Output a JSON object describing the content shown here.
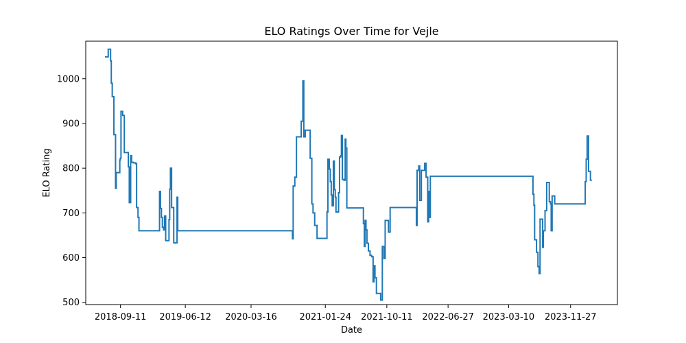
{
  "chart_data": {
    "type": "line",
    "title": "ELO Ratings Over Time for Vejle",
    "xlabel": "Date",
    "ylabel": "ELO Rating",
    "x_is_date": true,
    "xlim": [
      "2018-04-17",
      "2024-06-12"
    ],
    "ylim": [
      495,
      1084
    ],
    "x_ticks": [
      "2018-09-11",
      "2019-06-12",
      "2020-03-16",
      "2021-01-24",
      "2021-10-11",
      "2022-06-27",
      "2023-03-10",
      "2023-11-27"
    ],
    "y_ticks": [
      500,
      600,
      700,
      800,
      900,
      1000
    ],
    "grid": false,
    "color": "#1f77b4",
    "series": [
      {
        "name": "",
        "step": true,
        "points": [
          [
            "2018-07-07",
            1049
          ],
          [
            "2018-07-14",
            1049
          ],
          [
            "2018-07-21",
            1066
          ],
          [
            "2018-07-28",
            1066
          ],
          [
            "2018-07-31",
            1040
          ],
          [
            "2018-08-03",
            990
          ],
          [
            "2018-08-07",
            960
          ],
          [
            "2018-08-10",
            960
          ],
          [
            "2018-08-14",
            875
          ],
          [
            "2018-08-18",
            875
          ],
          [
            "2018-08-21",
            755
          ],
          [
            "2018-08-24",
            790
          ],
          [
            "2018-08-28",
            790
          ],
          [
            "2018-09-04",
            790
          ],
          [
            "2018-09-08",
            818
          ],
          [
            "2018-09-10",
            822
          ],
          [
            "2018-09-13",
            927
          ],
          [
            "2018-09-17",
            927
          ],
          [
            "2018-09-20",
            918
          ],
          [
            "2018-09-27",
            835
          ],
          [
            "2018-10-07",
            835
          ],
          [
            "2018-10-14",
            803
          ],
          [
            "2018-10-18",
            723
          ],
          [
            "2018-10-21",
            723
          ],
          [
            "2018-10-24",
            828
          ],
          [
            "2018-10-28",
            813
          ],
          [
            "2018-11-04",
            812
          ],
          [
            "2018-11-10",
            812
          ],
          [
            "2018-11-14",
            810
          ],
          [
            "2018-11-18",
            712
          ],
          [
            "2018-11-24",
            690
          ],
          [
            "2018-11-28",
            660
          ],
          [
            "2018-12-20",
            660
          ],
          [
            "2019-01-25",
            660
          ],
          [
            "2019-02-17",
            660
          ],
          [
            "2019-02-23",
            748
          ],
          [
            "2019-02-27",
            710
          ],
          [
            "2019-03-03",
            690
          ],
          [
            "2019-03-07",
            668
          ],
          [
            "2019-03-12",
            662
          ],
          [
            "2019-03-16",
            693
          ],
          [
            "2019-03-21",
            638
          ],
          [
            "2019-04-01",
            638
          ],
          [
            "2019-04-04",
            685
          ],
          [
            "2019-04-07",
            753
          ],
          [
            "2019-04-10",
            800
          ],
          [
            "2019-04-12",
            800
          ],
          [
            "2019-04-15",
            712
          ],
          [
            "2019-04-21",
            712
          ],
          [
            "2019-04-24",
            633
          ],
          [
            "2019-05-05",
            633
          ],
          [
            "2019-05-08",
            735
          ],
          [
            "2019-05-11",
            660
          ],
          [
            "2019-06-12",
            660
          ],
          [
            "2019-10-01",
            660
          ],
          [
            "2020-03-16",
            660
          ],
          [
            "2020-08-01",
            660
          ],
          [
            "2020-09-03",
            660
          ],
          [
            "2020-09-07",
            642
          ],
          [
            "2020-09-10",
            760
          ],
          [
            "2020-09-17",
            780
          ],
          [
            "2020-09-24",
            870
          ],
          [
            "2020-10-04",
            870
          ],
          [
            "2020-10-14",
            905
          ],
          [
            "2020-10-21",
            995
          ],
          [
            "2020-10-25",
            870
          ],
          [
            "2020-10-31",
            885
          ],
          [
            "2020-11-14",
            885
          ],
          [
            "2020-11-21",
            822
          ],
          [
            "2020-11-28",
            720
          ],
          [
            "2020-12-03",
            700
          ],
          [
            "2020-12-10",
            672
          ],
          [
            "2020-12-20",
            643
          ],
          [
            "2021-01-24",
            643
          ],
          [
            "2021-01-31",
            702
          ],
          [
            "2021-02-04",
            820
          ],
          [
            "2021-02-10",
            798
          ],
          [
            "2021-02-14",
            770
          ],
          [
            "2021-02-18",
            740
          ],
          [
            "2021-02-22",
            716
          ],
          [
            "2021-02-27",
            816
          ],
          [
            "2021-03-03",
            752
          ],
          [
            "2021-03-07",
            735
          ],
          [
            "2021-03-10",
            702
          ],
          [
            "2021-03-21",
            745
          ],
          [
            "2021-03-25",
            825
          ],
          [
            "2021-03-30",
            828
          ],
          [
            "2021-04-02",
            873
          ],
          [
            "2021-04-06",
            775
          ],
          [
            "2021-04-13",
            773
          ],
          [
            "2021-04-18",
            865
          ],
          [
            "2021-04-21",
            845
          ],
          [
            "2021-04-25",
            711
          ],
          [
            "2021-05-10",
            711
          ],
          [
            "2021-06-14",
            711
          ],
          [
            "2021-07-04",
            676
          ],
          [
            "2021-07-08",
            625
          ],
          [
            "2021-07-11",
            683
          ],
          [
            "2021-07-15",
            662
          ],
          [
            "2021-07-19",
            632
          ],
          [
            "2021-07-25",
            615
          ],
          [
            "2021-08-01",
            605
          ],
          [
            "2021-08-08",
            602
          ],
          [
            "2021-08-14",
            546
          ],
          [
            "2021-08-18",
            582
          ],
          [
            "2021-08-22",
            555
          ],
          [
            "2021-08-28",
            520
          ],
          [
            "2021-09-15",
            505
          ],
          [
            "2021-09-22",
            625
          ],
          [
            "2021-09-29",
            598
          ],
          [
            "2021-10-04",
            683
          ],
          [
            "2021-10-18",
            657
          ],
          [
            "2021-10-25",
            712
          ],
          [
            "2021-12-01",
            712
          ],
          [
            "2022-02-06",
            712
          ],
          [
            "2022-02-13",
            672
          ],
          [
            "2022-02-16",
            795
          ],
          [
            "2022-02-23",
            805
          ],
          [
            "2022-02-27",
            728
          ],
          [
            "2022-03-06",
            795
          ],
          [
            "2022-03-16",
            795
          ],
          [
            "2022-03-20",
            811
          ],
          [
            "2022-03-26",
            780
          ],
          [
            "2022-04-02",
            680
          ],
          [
            "2022-04-06",
            748
          ],
          [
            "2022-04-10",
            690
          ],
          [
            "2022-04-13",
            782
          ],
          [
            "2022-05-15",
            782
          ],
          [
            "2022-06-27",
            782
          ],
          [
            "2022-10-01",
            782
          ],
          [
            "2023-03-10",
            782
          ],
          [
            "2023-06-01",
            782
          ],
          [
            "2023-06-18",
            782
          ],
          [
            "2023-06-21",
            742
          ],
          [
            "2023-06-25",
            717
          ],
          [
            "2023-06-28",
            640
          ],
          [
            "2023-07-06",
            612
          ],
          [
            "2023-07-12",
            580
          ],
          [
            "2023-07-17",
            564
          ],
          [
            "2023-07-21",
            686
          ],
          [
            "2023-07-28",
            686
          ],
          [
            "2023-08-01",
            623
          ],
          [
            "2023-08-04",
            660
          ],
          [
            "2023-08-11",
            705
          ],
          [
            "2023-08-18",
            768
          ],
          [
            "2023-08-29",
            725
          ],
          [
            "2023-09-03",
            720
          ],
          [
            "2023-09-06",
            660
          ],
          [
            "2023-09-10",
            738
          ],
          [
            "2023-09-17",
            738
          ],
          [
            "2023-09-21",
            720
          ],
          [
            "2023-11-27",
            720
          ],
          [
            "2024-01-24",
            720
          ],
          [
            "2024-01-28",
            770
          ],
          [
            "2024-02-01",
            820
          ],
          [
            "2024-02-05",
            872
          ],
          [
            "2024-02-11",
            793
          ],
          [
            "2024-02-15",
            793
          ],
          [
            "2024-02-19",
            773
          ],
          [
            "2024-02-25",
            773
          ]
        ]
      }
    ]
  }
}
